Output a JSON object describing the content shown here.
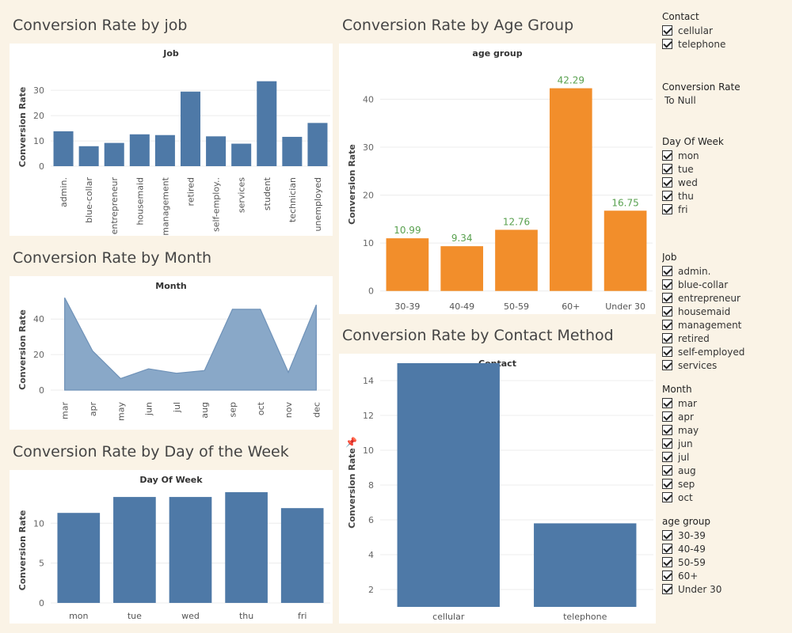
{
  "titles": {
    "job": "Conversion Rate by job",
    "month": "Conversion Rate by Month",
    "dow": "Conversion Rate by Day of the Week",
    "age": "Conversion Rate by Age Group",
    "contact": "Conversion Rate by Contact Method"
  },
  "colors": {
    "blue": "#4e79a7",
    "orange": "#f28e2b",
    "label_green": "#59a14f"
  },
  "filters": {
    "contact": {
      "title": "Contact",
      "items": [
        "cellular",
        "telephone"
      ]
    },
    "conversion_rate": {
      "title": "Conversion Rate",
      "note": "To Null"
    },
    "day_of_week": {
      "title": "Day Of Week",
      "items": [
        "mon",
        "tue",
        "wed",
        "thu",
        "fri"
      ]
    },
    "job": {
      "title": "Job",
      "items": [
        "admin.",
        "blue-collar",
        "entrepreneur",
        "housemaid",
        "management",
        "retired",
        "self-employed",
        "services"
      ]
    },
    "month": {
      "title": "Month",
      "items": [
        "mar",
        "apr",
        "may",
        "jun",
        "jul",
        "aug",
        "sep",
        "oct"
      ]
    },
    "age_group": {
      "title": "age group",
      "items": [
        "30-39",
        "40-49",
        "50-59",
        "60+",
        "Under 30"
      ]
    }
  },
  "chart_data": [
    {
      "id": "job",
      "type": "bar",
      "title": "Job",
      "ylabel": "Conversion Rate",
      "categories": [
        "admin.",
        "blue-collar",
        "entrepreneur",
        "housemaid",
        "management",
        "retired",
        "self-employ..",
        "services",
        "student",
        "technician",
        "unemployed"
      ],
      "values": [
        13.8,
        7.9,
        9.2,
        12.6,
        12.3,
        29.5,
        11.8,
        8.9,
        33.6,
        11.6,
        17.1
      ],
      "yticks": [
        0,
        10,
        20,
        30
      ],
      "ylim": [
        -2.5,
        36
      ],
      "grid": true
    },
    {
      "id": "month",
      "type": "area",
      "title": "Month",
      "ylabel": "Conversion Rate",
      "categories": [
        "mar",
        "apr",
        "may",
        "jun",
        "jul",
        "aug",
        "sep",
        "oct",
        "nov",
        "dec"
      ],
      "values": [
        52,
        22,
        6.5,
        12,
        9.5,
        11,
        45.5,
        45.5,
        10,
        48
      ],
      "yticks": [
        0,
        20,
        40
      ],
      "ylim": [
        -4,
        53
      ],
      "grid": true
    },
    {
      "id": "dow",
      "type": "bar",
      "title": "Day Of Week",
      "ylabel": "Conversion Rate",
      "categories": [
        "mon",
        "tue",
        "wed",
        "thu",
        "fri"
      ],
      "values": [
        11.3,
        13.3,
        13.3,
        13.9,
        11.9
      ],
      "yticks": [
        0,
        5,
        10
      ],
      "ylim": [
        -0.5,
        14.5
      ],
      "grid": true
    },
    {
      "id": "age",
      "type": "bar",
      "title": "age group",
      "ylabel": "Conversion Rate",
      "categories": [
        "30-39",
        "40-49",
        "50-59",
        "60+",
        "Under 30"
      ],
      "values": [
        10.99,
        9.34,
        12.76,
        42.29,
        16.75
      ],
      "data_labels": [
        "10.99",
        "9.34",
        "12.76",
        "42.29",
        "16.75"
      ],
      "yticks": [
        0,
        10,
        20,
        30,
        40
      ],
      "ylim": [
        -1.2,
        47
      ],
      "grid": true
    },
    {
      "id": "contact",
      "type": "bar",
      "title": "Contact",
      "ylabel": "Conversion Rate",
      "categories": [
        "cellular",
        "telephone"
      ],
      "values": [
        15.0,
        5.8
      ],
      "yticks": [
        2,
        4,
        6,
        8,
        10,
        12,
        14
      ],
      "ylim": [
        1,
        15
      ],
      "grid": true
    }
  ]
}
